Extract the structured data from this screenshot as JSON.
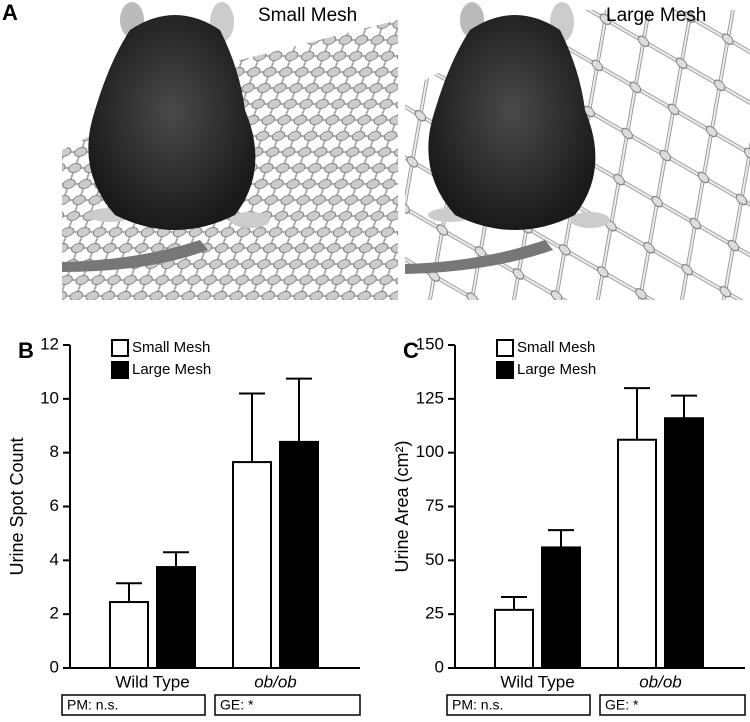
{
  "panel_a": {
    "label": "A",
    "titles": [
      "Small Mesh",
      "Large Mesh"
    ]
  },
  "chart_data": [
    {
      "type": "bar",
      "panel_label": "B",
      "y_label": "Urine Spot Count",
      "categories": [
        "Wild Type",
        "ob/ob"
      ],
      "series": [
        {
          "name": "Small Mesh",
          "color": "#ffffff",
          "values": [
            2.45,
            7.65
          ],
          "errors": [
            0.7,
            2.55
          ]
        },
        {
          "name": "Large Mesh",
          "color": "#000000",
          "values": [
            3.75,
            8.4
          ],
          "errors": [
            0.55,
            2.35
          ]
        }
      ],
      "ylim": [
        0,
        12
      ],
      "yticks": [
        0,
        2,
        4,
        6,
        8,
        10,
        12
      ],
      "footnotes": [
        "PM: n.s.",
        "GE: *"
      ]
    },
    {
      "type": "bar",
      "panel_label": "C",
      "y_label": "Urine Area (cm²)",
      "categories": [
        "Wild Type",
        "ob/ob"
      ],
      "series": [
        {
          "name": "Small Mesh",
          "color": "#ffffff",
          "values": [
            27,
            106
          ],
          "errors": [
            6,
            24
          ]
        },
        {
          "name": "Large Mesh",
          "color": "#000000",
          "values": [
            56,
            116
          ],
          "errors": [
            8,
            10.5
          ]
        }
      ],
      "ylim": [
        0,
        150
      ],
      "yticks": [
        0,
        25,
        50,
        75,
        100,
        125,
        150
      ],
      "footnotes": [
        "PM: n.s.",
        "GE: *"
      ]
    }
  ]
}
